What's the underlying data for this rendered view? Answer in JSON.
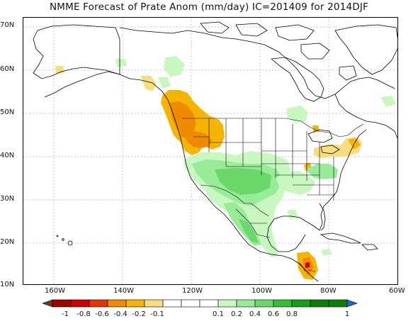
{
  "title": "NMME Forecast of Prate Anom (mm/day) IC=201409 for 2014DJF",
  "axes": {
    "lat_labels": [
      "70N",
      "60N",
      "50N",
      "40N",
      "30N",
      "20N",
      "10N"
    ],
    "lon_labels": [
      "160W",
      "140W",
      "120W",
      "100W",
      "80W",
      "60W"
    ]
  },
  "colorbar": {
    "labels": [
      "-1",
      "-0.8",
      "-0.6",
      "-0.4",
      "-0.2",
      "-0.1",
      "0.1",
      "0.2",
      "0.4",
      "0.6",
      "0.8",
      "1"
    ],
    "colors": [
      "#6b3a1e",
      "#a00000",
      "#cc0000",
      "#e83200",
      "#f08a00",
      "#f5b400",
      "#f8dc80",
      "#ffffff",
      "#c8f8c0",
      "#98ec98",
      "#6ad86a",
      "#32c032",
      "#14a014",
      "#0a800a",
      "#1e64dc"
    ]
  }
}
